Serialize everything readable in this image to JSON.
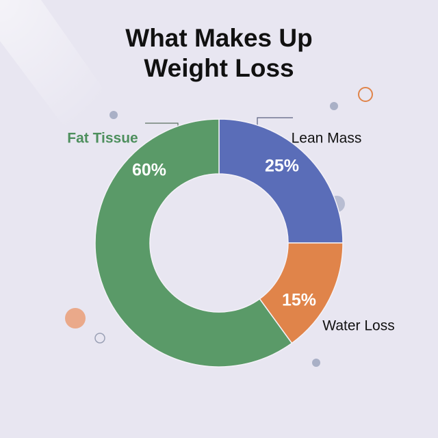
{
  "chart_data": {
    "type": "donut",
    "title": "What Makes Up Weight Loss",
    "categories": [
      "Lean Mass",
      "Water Loss",
      "Fat Tissue"
    ],
    "values": [
      25,
      15,
      60
    ],
    "value_labels": [
      "25%",
      "15%",
      "60%"
    ],
    "colors": [
      "#5a6db8",
      "#e0844a",
      "#5a9a68"
    ]
  }
}
